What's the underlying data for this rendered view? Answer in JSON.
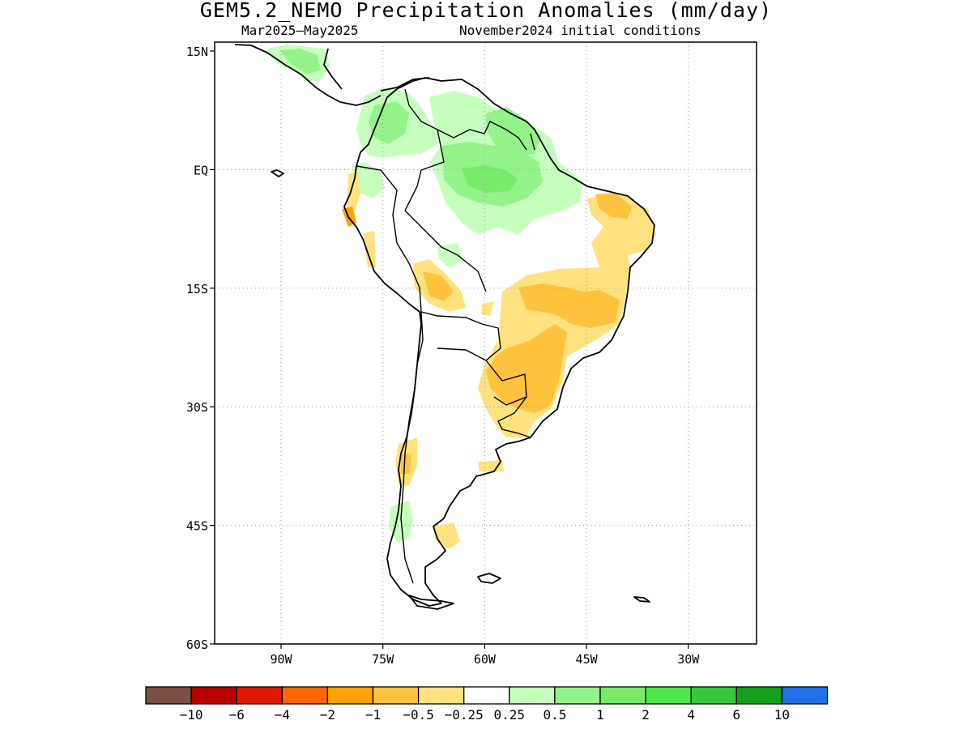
{
  "title": "GEM5.2_NEMO Precipitation Anomalies (mm/day)",
  "subtitle_left": "Mar2025—May2025",
  "subtitle_right": "November2024 initial conditions",
  "lat_labels": [
    {
      "lat": 15,
      "label": "15N"
    },
    {
      "lat": 0,
      "label": "EQ"
    },
    {
      "lat": -15,
      "label": "15S"
    },
    {
      "lat": -30,
      "label": "30S"
    },
    {
      "lat": -45,
      "label": "45S"
    },
    {
      "lat": -60,
      "label": "60S"
    }
  ],
  "lon_labels": [
    {
      "lon": -90,
      "label": "90W"
    },
    {
      "lon": -75,
      "label": "75W"
    },
    {
      "lon": -60,
      "label": "60W"
    },
    {
      "lon": -45,
      "label": "45W"
    },
    {
      "lon": -30,
      "label": "30W"
    }
  ],
  "colorbar": {
    "colors": [
      "#7b4f43",
      "#b80000",
      "#e01a00",
      "#ff6600",
      "#ffa200",
      "#ffc23d",
      "#ffe27f",
      "#ffffff",
      "#c6ffbd",
      "#94f28b",
      "#78eb6b",
      "#4fe84a",
      "#34c93a",
      "#11a11b",
      "#1f6fe8"
    ],
    "labels": [
      "−10",
      "−6",
      "−4",
      "−2",
      "−1",
      "−0.5",
      "−0.25",
      "0.25",
      "0.5",
      "1",
      "2",
      "4",
      "6",
      "10"
    ]
  },
  "legend_classes": {
    "wet_1": "#c6ffbd",
    "wet_2": "#94f28b",
    "wet_3": "#78eb6b",
    "dry_1": "#ffe27f",
    "dry_2": "#ffc23d",
    "dry_3": "#ffa200"
  }
}
